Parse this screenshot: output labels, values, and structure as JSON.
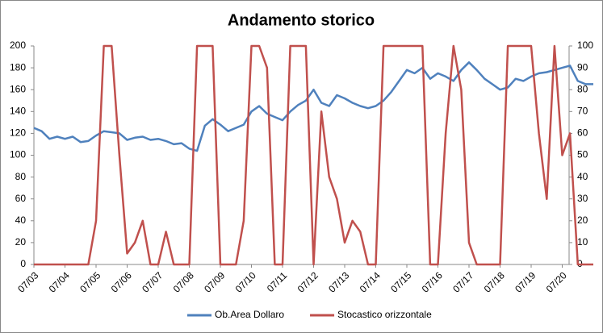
{
  "chart_data": {
    "type": "line",
    "title": "Andamento storico",
    "categories": [
      "07/03",
      null,
      null,
      null,
      "07/04",
      null,
      null,
      null,
      "07/05",
      null,
      null,
      null,
      "07/06",
      null,
      null,
      null,
      "07/07",
      null,
      null,
      null,
      "07/08",
      null,
      null,
      null,
      "07/09",
      null,
      null,
      null,
      "07/10",
      null,
      null,
      null,
      "07/11",
      null,
      null,
      null,
      "07/12",
      null,
      null,
      null,
      "07/13",
      null,
      null,
      null,
      "07/14",
      null,
      null,
      null,
      "07/15",
      null,
      null,
      null,
      "07/16",
      null,
      null,
      null,
      "07/17",
      null,
      null,
      null,
      "07/18",
      null,
      null,
      null,
      "07/19",
      null,
      null,
      null,
      "07/20",
      null,
      null,
      null,
      null
    ],
    "series": [
      {
        "name": "Ob.Area Dollaro",
        "color": "#4f81bd",
        "values": [
          125,
          122,
          115,
          117,
          115,
          117,
          112,
          113,
          118,
          122,
          121,
          120,
          114,
          116,
          117,
          114,
          115,
          113,
          110,
          111,
          106,
          104,
          127,
          133,
          128,
          122,
          125,
          128,
          140,
          145,
          138,
          135,
          132,
          140,
          146,
          150,
          160,
          148,
          145,
          155,
          152,
          148,
          145,
          143,
          145,
          150,
          158,
          168,
          178,
          175,
          180,
          170,
          175,
          172,
          168,
          178,
          185,
          178,
          170,
          165,
          160,
          162,
          170,
          168,
          172,
          175,
          176,
          178,
          180,
          182,
          168,
          165,
          165
        ]
      },
      {
        "name": "Stocastico orizzontale",
        "color": "#c0504d",
        "axis": "y2",
        "values": [
          0,
          0,
          0,
          0,
          0,
          0,
          0,
          0,
          20,
          100,
          100,
          50,
          5,
          10,
          20,
          0,
          0,
          15,
          0,
          0,
          0,
          100,
          100,
          100,
          0,
          0,
          0,
          20,
          100,
          100,
          90,
          0,
          0,
          100,
          100,
          100,
          0,
          70,
          40,
          30,
          10,
          20,
          15,
          0,
          0,
          100,
          100,
          100,
          100,
          100,
          100,
          0,
          0,
          60,
          100,
          80,
          10,
          0,
          0,
          0,
          0,
          100,
          100,
          100,
          100,
          60,
          30,
          100,
          50,
          60,
          0,
          0,
          0
        ]
      }
    ],
    "ylim": [
      0,
      200
    ],
    "yticks": [
      0,
      20,
      40,
      60,
      80,
      100,
      120,
      140,
      160,
      180,
      200
    ],
    "y2lim": [
      0,
      100
    ],
    "y2ticks": [
      0,
      10,
      20,
      30,
      40,
      50,
      60,
      70,
      80,
      90,
      100
    ],
    "legend": "bottom"
  }
}
